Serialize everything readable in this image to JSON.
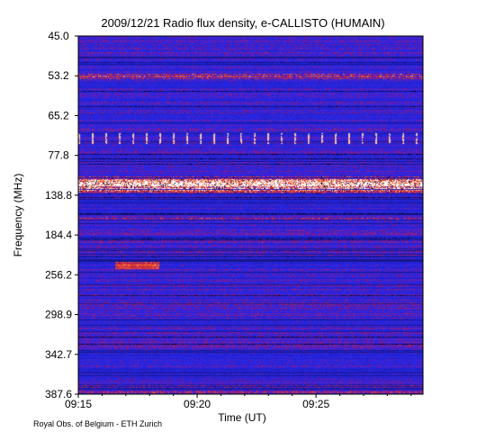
{
  "chart_data": {
    "type": "heatmap",
    "title": "2009/12/21  Radio flux density, e-CALLISTO (HUMAIN)",
    "xlabel": "Time (UT)",
    "ylabel": "Frequency (MHz)",
    "x_range": [
      "09:15",
      "09:29:30"
    ],
    "y_ticks": [
      "45.0",
      "53.2",
      "65.2",
      "77.8",
      "138.8",
      "184.4",
      "256.2",
      "298.9",
      "342.7",
      "387.6"
    ],
    "x_ticks": [
      "09:15",
      "09:20",
      "09:25"
    ],
    "y_inverted": true,
    "colormap": [
      "#000000",
      "#1a1aa0",
      "#2b2bd8",
      "#8a1a6e",
      "#e6320f",
      "#ffa820",
      "#ffffff"
    ],
    "features": [
      {
        "type": "band",
        "y": "138.8",
        "intensity": "high"
      },
      {
        "type": "band",
        "y": "53.2",
        "intensity": "medium"
      },
      {
        "type": "band",
        "y": "184.4",
        "intensity": "medium"
      }
    ],
    "credit": "Royal Obs. of Belgium - ETH Zurich"
  }
}
